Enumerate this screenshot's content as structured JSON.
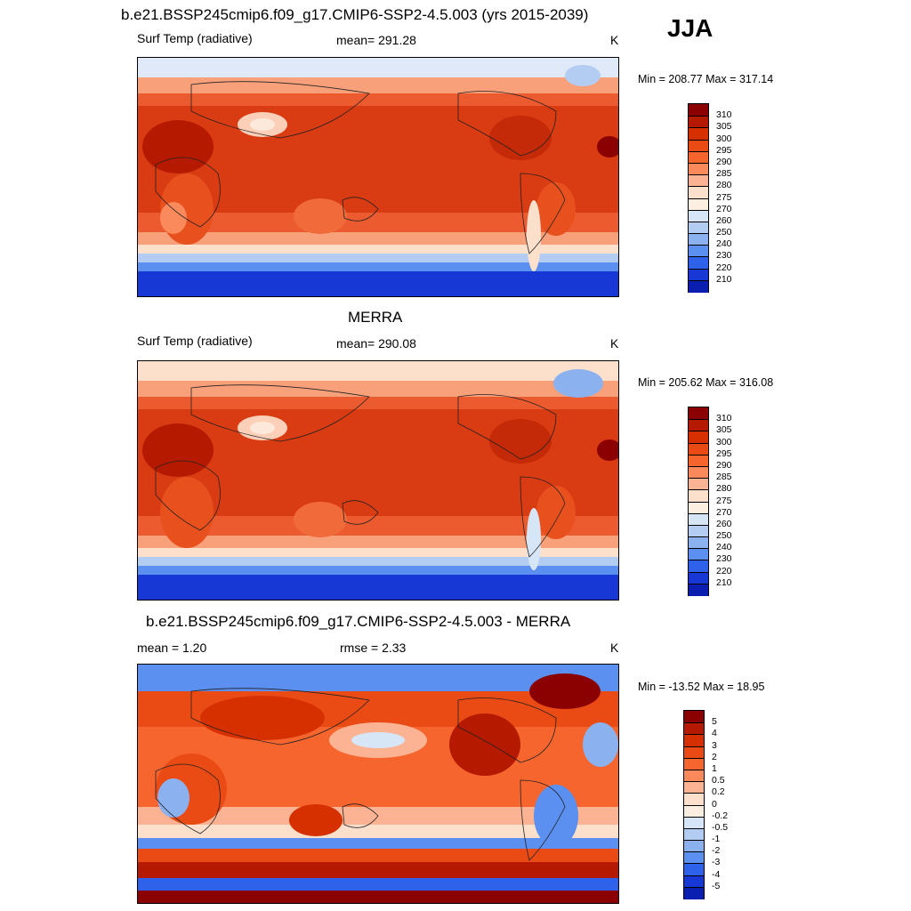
{
  "season": "JJA",
  "panels": [
    {
      "title": "b.e21.BSSP245cmip6.f09_g17.CMIP6-SSP2-4.5.003 (yrs 2015-2039)",
      "left": "Surf Temp (radiative)",
      "center": "mean= 291.28",
      "right": "K",
      "minmax": "Min = 208.77 Max = 317.14"
    },
    {
      "title": "MERRA",
      "left": "Surf Temp (radiative)",
      "center": "mean= 290.08",
      "right": "K",
      "minmax": "Min = 205.62 Max = 316.08"
    },
    {
      "title": "b.e21.BSSP245cmip6.f09_g17.CMIP6-SSP2-4.5.003 - MERRA",
      "left": "mean =   1.20",
      "center": "rmse =   2.33",
      "right": "K",
      "minmax": "Min = -13.52 Max =  18.95"
    }
  ],
  "colorbar_abs": {
    "labels": [
      "310",
      "305",
      "300",
      "295",
      "290",
      "285",
      "280",
      "275",
      "270",
      "260",
      "250",
      "240",
      "230",
      "220",
      "210"
    ],
    "colors": [
      "#8b0000",
      "#b51a00",
      "#d63000",
      "#ea4a14",
      "#f7652f",
      "#fa8a5c",
      "#fcb394",
      "#fde0cc",
      "#fdeee2",
      "#d7e6f6",
      "#b3cdf2",
      "#8cb1ef",
      "#5b8ff0",
      "#2f62ea",
      "#1838d6",
      "#0a1fb0"
    ]
  },
  "colorbar_diff": {
    "labels": [
      "5",
      "4",
      "3",
      "2",
      "1",
      "0.5",
      "0.2",
      "0",
      "-0.2",
      "-0.5",
      "-1",
      "-2",
      "-3",
      "-4",
      "-5"
    ],
    "colors": [
      "#8b0000",
      "#b51a00",
      "#d63000",
      "#ea4a14",
      "#f7652f",
      "#fa8a5c",
      "#fcb394",
      "#fde0cc",
      "#fdeee2",
      "#d7e6f6",
      "#b3cdf2",
      "#8cb1ef",
      "#5b8ff0",
      "#2f62ea",
      "#1838d6",
      "#0a1fb0"
    ]
  }
}
